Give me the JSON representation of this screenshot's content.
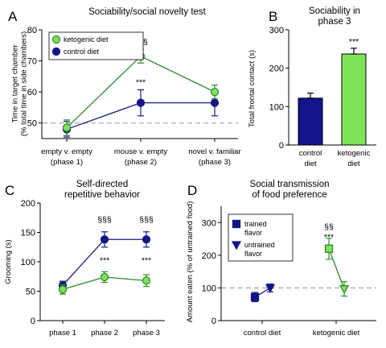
{
  "colors": {
    "ketogenic": "#2e8b2e",
    "ketogenic_fill": "#7fe35a",
    "control": "#1a1a7a",
    "control_fill": "#14148c",
    "dash": "#aaaaaa"
  },
  "chart_data": [
    {
      "id": "A",
      "panel_letter": "A",
      "type": "line",
      "title": "Sociability/social novelty test",
      "ylabel": [
        "Time in target chamber",
        "(% total time in side chambers)"
      ],
      "ylim": [
        45,
        80
      ],
      "yticks": [
        "50",
        "60",
        "70",
        "80"
      ],
      "categories": [
        [
          "empty v. empty",
          "(phase 1)"
        ],
        [
          "mouse v. empty",
          "(phase 2)"
        ],
        [
          "novel v. familiar",
          "(phase 3)"
        ]
      ],
      "reference_line": 50,
      "legend": [
        "ketogenic diet",
        "control diet"
      ],
      "series": [
        {
          "name": "ketogenic diet",
          "key": "ketogenic",
          "values": [
            48.5,
            71.5,
            60
          ],
          "errors": [
            2.5,
            2.2,
            2.2
          ]
        },
        {
          "name": "control diet",
          "key": "control",
          "values": [
            48,
            56.5,
            56.5
          ],
          "errors": [
            2.5,
            4.2,
            4.2
          ]
        }
      ],
      "annotations": [
        {
          "text": "§§§",
          "cat": 1,
          "y": 75.2
        },
        {
          "text": "***",
          "cat": 1,
          "y": 62.3
        }
      ]
    },
    {
      "id": "B",
      "panel_letter": "B",
      "type": "bar",
      "title": [
        "Sociability in",
        "phase 3"
      ],
      "ylabel": [
        "Total frontal contact (s)"
      ],
      "ylim": [
        0,
        300
      ],
      "yticks": [
        "0",
        "100",
        "200",
        "300"
      ],
      "categories": [
        [
          "control",
          "diet"
        ],
        [
          "ketogenic",
          "diet"
        ]
      ],
      "values": [
        122,
        237
      ],
      "errors": [
        13,
        15
      ],
      "annotations": [
        {
          "text": "***",
          "cat": 1,
          "y": 262
        }
      ]
    },
    {
      "id": "C",
      "panel_letter": "C",
      "type": "line",
      "title": [
        "Self-directed",
        "repetitive behavior"
      ],
      "ylabel": [
        "Grooming (s)"
      ],
      "ylim": [
        0,
        200
      ],
      "yticks": [
        "0",
        "50",
        "100",
        "150",
        "200"
      ],
      "categories": [
        [
          "phase 1"
        ],
        [
          "phase 2"
        ],
        [
          "phase 3"
        ]
      ],
      "series": [
        {
          "name": "control diet",
          "key": "control",
          "values": [
            60,
            138,
            138
          ],
          "errors": [
            7,
            13,
            13
          ]
        },
        {
          "name": "ketogenic diet",
          "key": "ketogenic",
          "values": [
            53,
            74,
            68
          ],
          "errors": [
            8,
            9,
            10
          ]
        }
      ],
      "annotations": [
        {
          "text": "§§§",
          "cat": 1,
          "y": 167
        },
        {
          "text": "§§§",
          "cat": 2,
          "y": 167
        },
        {
          "text": "***",
          "cat": 1,
          "y": 98
        },
        {
          "text": "***",
          "cat": 2,
          "y": 98
        }
      ]
    },
    {
      "id": "D",
      "panel_letter": "D",
      "type": "line",
      "title": [
        "Social transmission",
        "of food preference"
      ],
      "ylabel": [
        "Amount eaten (% of untrained food)"
      ],
      "ylim": [
        0,
        350
      ],
      "yticks": [
        "0",
        "100",
        "200",
        "300"
      ],
      "categories": [
        [
          "control diet"
        ],
        [
          "ketogenic diet"
        ]
      ],
      "reference_line": 100,
      "legend": [
        [
          "trained",
          "flavor"
        ],
        [
          "untrained",
          "flavor"
        ]
      ],
      "series": [
        {
          "name": "control diet",
          "key": "control",
          "values": [
            {
              "flavor": "trained",
              "y": 72,
              "err": 14
            },
            {
              "flavor": "untrained",
              "y": 100,
              "err": 12
            }
          ]
        },
        {
          "name": "ketogenic diet",
          "key": "ketogenic",
          "values": [
            {
              "flavor": "trained",
              "y": 220,
              "err": 32
            },
            {
              "flavor": "untrained",
              "y": 97,
              "err": 22
            }
          ]
        }
      ],
      "annotations": [
        {
          "text": "§§",
          "cat": 1,
          "y": 278
        },
        {
          "text": "***",
          "cat": 1,
          "y": 248
        }
      ]
    }
  ]
}
